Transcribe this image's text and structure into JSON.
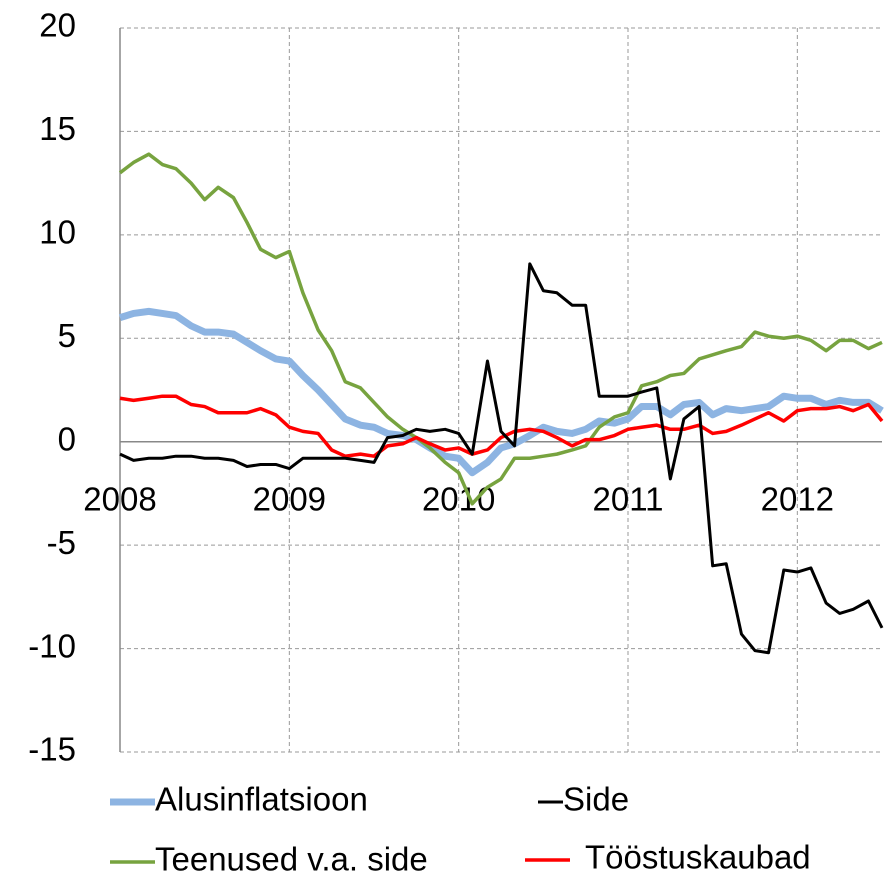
{
  "chart_data": {
    "type": "line",
    "x": [
      2008,
      2008.08,
      2008.17,
      2008.25,
      2008.33,
      2008.42,
      2008.5,
      2008.58,
      2008.67,
      2008.75,
      2008.83,
      2008.92,
      2009,
      2009.08,
      2009.17,
      2009.25,
      2009.33,
      2009.42,
      2009.5,
      2009.58,
      2009.67,
      2009.75,
      2009.83,
      2009.92,
      2010,
      2010.08,
      2010.17,
      2010.25,
      2010.33,
      2010.42,
      2010.5,
      2010.58,
      2010.67,
      2010.75,
      2010.83,
      2010.92,
      2011,
      2011.08,
      2011.17,
      2011.25,
      2011.33,
      2011.42,
      2011.5,
      2011.58,
      2011.67,
      2011.75,
      2011.83,
      2011.92,
      2012,
      2012.08,
      2012.17,
      2012.25,
      2012.33,
      2012.42,
      2012.5
    ],
    "xlim": [
      2008,
      2012.5
    ],
    "xticks": [
      2008,
      2009,
      2010,
      2011,
      2012
    ],
    "ylim": [
      -15,
      20
    ],
    "yticks": [
      -15,
      -10,
      -5,
      0,
      5,
      10,
      15,
      20
    ],
    "grid": true,
    "legend": "bottom",
    "series": [
      {
        "name": "Alusinflatsioon",
        "color": "#8db4e2",
        "values": [
          6.0,
          6.2,
          6.3,
          6.2,
          6.1,
          5.6,
          5.3,
          5.3,
          5.2,
          4.8,
          4.4,
          4.0,
          3.9,
          3.2,
          2.5,
          1.8,
          1.1,
          0.8,
          0.7,
          0.4,
          0.3,
          0.1,
          -0.3,
          -0.7,
          -0.8,
          -1.5,
          -1.0,
          -0.3,
          -0.1,
          0.3,
          0.7,
          0.5,
          0.4,
          0.6,
          1.0,
          0.9,
          1.1,
          1.7,
          1.7,
          1.3,
          1.8,
          1.9,
          1.3,
          1.6,
          1.5,
          1.6,
          1.7,
          2.2,
          2.1,
          2.1,
          1.8,
          2.0,
          1.9,
          1.9,
          1.5
        ]
      },
      {
        "name": "Side",
        "color": "#000000",
        "values": [
          -0.6,
          -0.9,
          -0.8,
          -0.8,
          -0.7,
          -0.7,
          -0.8,
          -0.8,
          -0.9,
          -1.2,
          -1.1,
          -1.1,
          -1.3,
          -0.8,
          -0.8,
          -0.8,
          -0.8,
          -0.9,
          -1.0,
          0.2,
          0.3,
          0.6,
          0.5,
          0.6,
          0.4,
          -0.6,
          3.9,
          0.5,
          -0.2,
          8.6,
          7.3,
          7.2,
          6.6,
          6.6,
          2.2,
          2.2,
          2.2,
          2.4,
          2.6,
          -1.8,
          1.1,
          1.7,
          -6.0,
          -5.9,
          -9.3,
          -10.1,
          -10.2,
          -6.2,
          -6.3,
          -6.1,
          -7.8,
          -8.3,
          -8.1,
          -7.7,
          -9.0
        ]
      },
      {
        "name": "Teenused v.a. side",
        "color": "#77a33f",
        "values": [
          13.0,
          13.5,
          13.9,
          13.4,
          13.2,
          12.5,
          11.7,
          12.3,
          11.8,
          10.6,
          9.3,
          8.9,
          9.2,
          7.2,
          5.4,
          4.4,
          2.9,
          2.6,
          1.9,
          1.2,
          0.6,
          0.2,
          -0.3,
          -1.0,
          -1.5,
          -3.0,
          -2.2,
          -1.8,
          -0.8,
          -0.8,
          -0.7,
          -0.6,
          -0.4,
          -0.2,
          0.7,
          1.2,
          1.4,
          2.7,
          2.9,
          3.2,
          3.3,
          4.0,
          4.2,
          4.4,
          4.6,
          5.3,
          5.1,
          5.0,
          5.1,
          4.9,
          4.4,
          4.9,
          4.9,
          4.5,
          4.8
        ]
      },
      {
        "name": "Tööstuskaubad",
        "color": "#ff0000",
        "values": [
          2.1,
          2.0,
          2.1,
          2.2,
          2.2,
          1.8,
          1.7,
          1.4,
          1.4,
          1.4,
          1.6,
          1.3,
          0.7,
          0.5,
          0.4,
          -0.4,
          -0.7,
          -0.6,
          -0.7,
          -0.2,
          -0.1,
          0.2,
          -0.1,
          -0.4,
          -0.3,
          -0.6,
          -0.4,
          0.2,
          0.5,
          0.6,
          0.5,
          0.2,
          -0.2,
          0.1,
          0.1,
          0.3,
          0.6,
          0.7,
          0.8,
          0.6,
          0.6,
          0.8,
          0.4,
          0.5,
          0.8,
          1.1,
          1.4,
          1.0,
          1.5,
          1.6,
          1.6,
          1.7,
          1.5,
          1.8,
          1.0
        ]
      }
    ]
  }
}
